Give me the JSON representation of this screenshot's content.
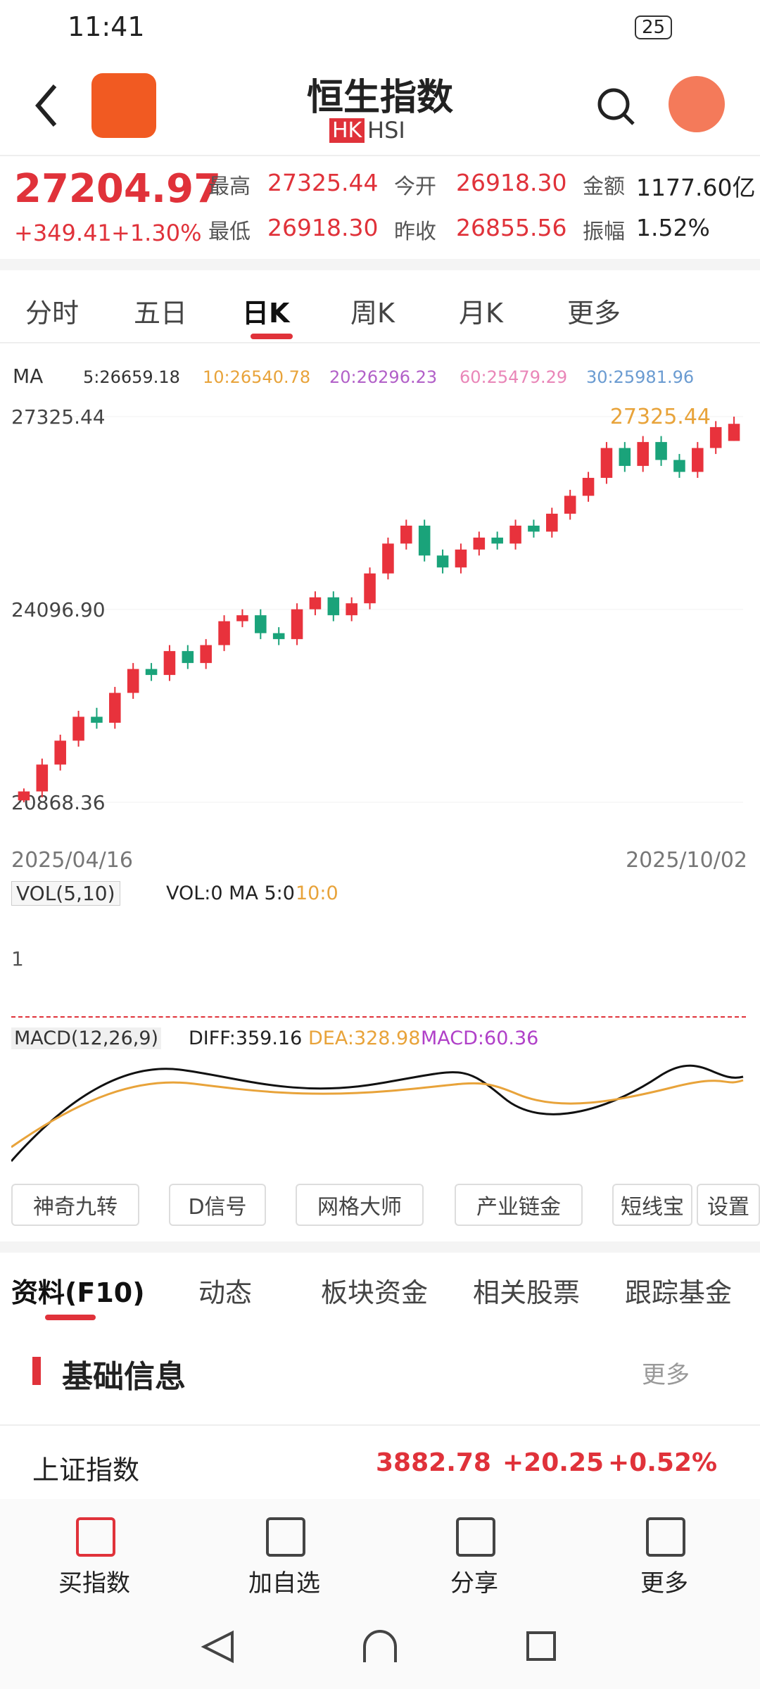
{
  "status": {
    "time": "11:41",
    "battery": "25"
  },
  "header": {
    "title": "恒生指数",
    "badge": "HK",
    "code": "HSI"
  },
  "quote": {
    "price": "27204.97",
    "change": "+349.41",
    "change_pct": "+1.30%",
    "stats": [
      {
        "label": "最高",
        "value": "27325.44"
      },
      {
        "label": "今开",
        "value": "26918.30"
      },
      {
        "label": "金额",
        "value": "1177.60亿"
      },
      {
        "label": "最低",
        "value": "26918.30"
      },
      {
        "label": "昨收",
        "value": "26855.56"
      },
      {
        "label": "振幅",
        "value": "1.52%"
      }
    ]
  },
  "tabs": [
    "分时",
    "五日",
    "日K",
    "周K",
    "月K",
    "更多"
  ],
  "kline": {
    "ma_label": "MA",
    "ma": [
      {
        "text": "5:26659.18",
        "color": "#333333"
      },
      {
        "text": "10:26540.78",
        "color": "#e8a33a"
      },
      {
        "text": "20:26296.23",
        "color": "#b260c8"
      },
      {
        "text": "60:25479.29",
        "color": "#e986b8"
      },
      {
        "text": "30:25981.96",
        "color": "#6a9bd1"
      }
    ],
    "high_marker": "27325.44",
    "ylim": [
      20868.36,
      27325.44
    ],
    "yticks": [
      {
        "value": 27325.44,
        "label": "27325.44"
      },
      {
        "value": 24096.9,
        "label": "24096.90"
      },
      {
        "value": 20868.36,
        "label": "20868.36"
      }
    ],
    "start_date": "2025/04/16",
    "end_date": "2025/10/02",
    "up_color": "#e8323c",
    "down_color": "#1aa37a",
    "open": [
      20900,
      21050,
      21500,
      21900,
      22300,
      22200,
      22700,
      23100,
      23000,
      23400,
      23200,
      23500,
      23900,
      24000,
      23700,
      23600,
      24100,
      24300,
      24000,
      24200,
      24700,
      25200,
      25500,
      25000,
      24800,
      25100,
      25300,
      25200,
      25500,
      25400,
      25700,
      26000,
      26300,
      26800,
      26500,
      26900,
      26600,
      26400,
      26800,
      26918.3
    ],
    "close": [
      21050,
      21500,
      21900,
      22300,
      22200,
      22700,
      23100,
      23000,
      23400,
      23200,
      23500,
      23900,
      24000,
      23700,
      23600,
      24100,
      24300,
      24000,
      24200,
      24700,
      25200,
      25500,
      25000,
      24800,
      25100,
      25300,
      25200,
      25500,
      25400,
      25700,
      26000,
      26300,
      26800,
      26500,
      26900,
      26600,
      26400,
      26800,
      27150,
      27204.97
    ],
    "high": [
      21100,
      21600,
      22000,
      22400,
      22450,
      22800,
      23200,
      23200,
      23500,
      23500,
      23600,
      24000,
      24100,
      24100,
      23800,
      24200,
      24400,
      24400,
      24300,
      24800,
      25300,
      25600,
      25600,
      25100,
      25200,
      25400,
      25400,
      25600,
      25600,
      25800,
      26100,
      26400,
      26900,
      26900,
      27000,
      27000,
      26700,
      26900,
      27250,
      27325.44
    ],
    "low": [
      20868.36,
      20950,
      21400,
      21800,
      22100,
      22100,
      22600,
      22900,
      22900,
      23100,
      23100,
      23400,
      23800,
      23600,
      23500,
      23500,
      24000,
      23900,
      23900,
      24100,
      24600,
      25100,
      24900,
      24700,
      24700,
      25000,
      25100,
      25100,
      25300,
      25300,
      25600,
      25900,
      26200,
      26400,
      26400,
      26500,
      26300,
      26300,
      26700,
      26918.3
    ]
  },
  "vol": {
    "indicator": "VOL(5,10)",
    "text": "VOL:0 MA 5:0",
    "ma10": "10:0",
    "axis": "1"
  },
  "macd": {
    "indicator": "MACD(12,26,9)",
    "diff": "DIFF:359.16",
    "dea": "DEA:328.98",
    "macd": "MACD:60.36"
  },
  "tools": [
    "神奇九转",
    "D信号",
    "网格大师",
    "产业链金",
    "短线宝",
    "设置"
  ],
  "info_tabs": [
    "资料(F10)",
    "动态",
    "板块资金",
    "相关股票",
    "跟踪基金"
  ],
  "section": {
    "title": "基础信息",
    "more": "更多"
  },
  "related": {
    "name": "上证指数",
    "price": "3882.78",
    "change": "+20.25",
    "pct": "+0.52%"
  },
  "nav": [
    "买指数",
    "加自选",
    "分享",
    "更多"
  ]
}
